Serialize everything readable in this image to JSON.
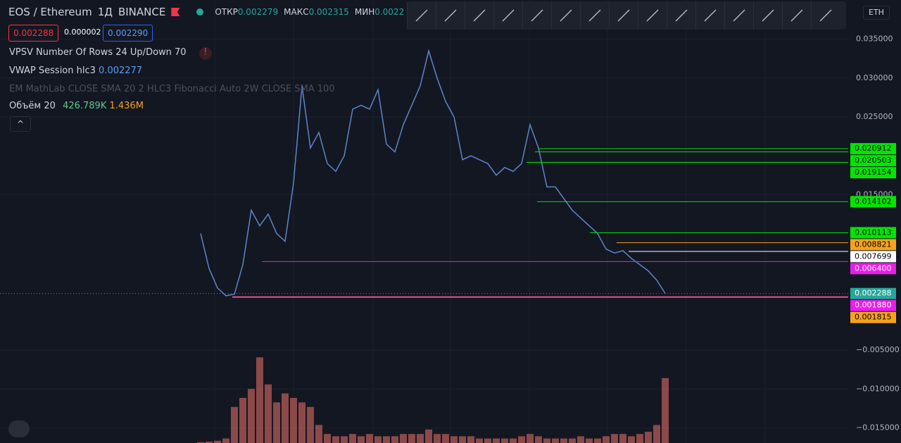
{
  "header": {
    "symbol": "EOS / Ethereum",
    "interval": "1Д",
    "exchange": "BINANCE",
    "open_label": "ОТКР",
    "open": "0.002279",
    "high_label": "МАКС",
    "high": "0.002315",
    "low_label": "МИН",
    "low": "0.0022",
    "sell": "0.002288",
    "spread": "0.000002",
    "buy": "0.002290",
    "currency": "ETH"
  },
  "indicators": [
    {
      "name": "VPSV Number Of Rows 24 Up/Down 70",
      "warning": "!"
    },
    {
      "name": "VWAP Session hlc3",
      "value": "0.002277"
    },
    {
      "name": "EM MathLab CLOSE SMA 20 2 HLC3 Fibonacci Auto 2W CLOSE SMA 100"
    },
    {
      "name": "Объём 20",
      "value": "426.789K",
      "value2": "1.436M"
    }
  ],
  "chart_data": {
    "type": "line",
    "series": [
      {
        "name": "EOS / Ethereum",
        "color": "#5d85c9",
        "values": [
          0.01,
          0.0055,
          0.003,
          0.002,
          0.0022,
          0.006,
          0.013,
          0.011,
          0.0125,
          0.01,
          0.009,
          0.0165,
          0.029,
          0.021,
          0.023,
          0.019,
          0.018,
          0.02,
          0.026,
          0.0265,
          0.026,
          0.0285,
          0.0215,
          0.0205,
          0.024,
          0.0265,
          0.029,
          0.0335,
          0.03,
          0.027,
          0.025,
          0.0195,
          0.02,
          0.0195,
          0.019,
          0.0175,
          0.0185,
          0.018,
          0.019,
          0.024,
          0.021,
          0.016,
          0.016,
          0.0145,
          0.013,
          0.012,
          0.011,
          0.01,
          0.008,
          0.0075,
          0.0078,
          0.0068,
          0.006,
          0.0052,
          0.004,
          0.0023
        ]
      },
      {
        "name": "Объём 20",
        "color": "#c0605a",
        "axis": "y2",
        "values": [
          0.02,
          0.03,
          0.05,
          0.1,
          0.8,
          1.0,
          1.2,
          1.9,
          1.3,
          0.9,
          1.1,
          1.0,
          0.9,
          0.8,
          0.4,
          0.2,
          0.15,
          0.15,
          0.2,
          0.15,
          0.2,
          0.15,
          0.15,
          0.15,
          0.2,
          0.2,
          0.2,
          0.3,
          0.2,
          0.2,
          0.15,
          0.15,
          0.15,
          0.1,
          0.1,
          0.1,
          0.1,
          0.1,
          0.15,
          0.2,
          0.15,
          0.1,
          0.1,
          0.1,
          0.1,
          0.15,
          0.1,
          0.1,
          0.15,
          0.2,
          0.2,
          0.15,
          0.2,
          0.25,
          0.4,
          1.44
        ]
      }
    ],
    "ylim": [
      -0.01694,
      0.04004
    ],
    "yticks": [
      {
        "value": 0.035,
        "label": "0.035000"
      },
      {
        "value": 0.03,
        "label": "0.030000"
      },
      {
        "value": 0.025,
        "label": "0.025000"
      },
      {
        "value": 0.015,
        "label": "0.015000"
      },
      {
        "value": -0.005,
        "label": "−0.005000"
      },
      {
        "value": -0.01,
        "label": "−0.010000"
      },
      {
        "value": -0.015,
        "label": "−0.015000"
      }
    ],
    "y2lim": [
      0,
      2.5
    ],
    "levels": [
      {
        "value": 0.020912,
        "label": "0.020912",
        "color": "#00e600",
        "text_color": "#000000",
        "line_style": "solid"
      },
      {
        "value": 0.020503,
        "label": "0.020503",
        "color": "#00e600",
        "text_color": "#000000",
        "line_style": "solid"
      },
      {
        "value": 0.019154,
        "label": "0.019154",
        "color": "#00e600",
        "text_color": "#000000",
        "line_style": "solid"
      },
      {
        "value": 0.014102,
        "label": "0.014102",
        "color": "#00e600",
        "text_color": "#000000",
        "line_style": "solid"
      },
      {
        "value": 0.010113,
        "label": "0.010113",
        "color": "#00e600",
        "text_color": "#000000",
        "line_style": "solid"
      },
      {
        "value": 0.008821,
        "label": "0.008821",
        "color": "#f7a21b",
        "text_color": "#000000",
        "line_style": "solid"
      },
      {
        "value": 0.007699,
        "label": "0.007699",
        "color": "#ffffff",
        "text_color": "#000000",
        "line_style": "solid"
      },
      {
        "value": 0.0064,
        "label": "0.006400",
        "color": "#e91ee9",
        "text_color": "#ffffff",
        "line_style": "solid"
      },
      {
        "value": 0.002288,
        "label": "0.002288",
        "color": "#26a69a",
        "text_color": "#ffffff",
        "line_style": "dotted"
      },
      {
        "value": 0.00188,
        "label": "0.001880",
        "color": "#e91ee9",
        "text_color": "#ffffff",
        "line_style": "solid"
      },
      {
        "value": 0.001815,
        "label": "0.001815",
        "color": "#f7a21b",
        "text_color": "#000000",
        "line_style": "solid"
      }
    ]
  }
}
